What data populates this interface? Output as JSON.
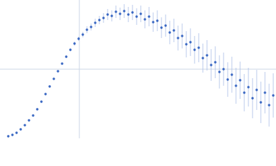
{
  "chart_data": {
    "type": "scatter",
    "color": "#3866c2",
    "error_color": "#a8bce6",
    "xlim": [
      0,
      400
    ],
    "ylim": [
      0,
      200
    ],
    "xgrid": [
      115
    ],
    "ygrid": [
      100
    ],
    "grid": true,
    "x": [
      12,
      18,
      24,
      30,
      36,
      42,
      48,
      54,
      60,
      66,
      72,
      78,
      84,
      90,
      96,
      102,
      108,
      114,
      120,
      126,
      132,
      138,
      144,
      150,
      156,
      162,
      168,
      174,
      180,
      186,
      192,
      198,
      204,
      210,
      216,
      222,
      228,
      234,
      240,
      246,
      252,
      258,
      264,
      270,
      276,
      282,
      288,
      294,
      300,
      306,
      312,
      318,
      324,
      330,
      336,
      342,
      348,
      354,
      360,
      366,
      372,
      378,
      384,
      390,
      396
    ],
    "values": [
      3,
      5,
      8,
      13,
      19,
      26,
      33,
      42,
      53,
      64,
      75,
      86,
      97,
      108,
      118,
      128,
      137,
      144,
      150,
      157,
      161,
      167,
      171,
      174,
      179,
      177,
      183,
      180,
      184,
      179,
      182,
      176,
      180,
      172,
      176,
      168,
      170,
      160,
      163,
      153,
      156,
      145,
      148,
      136,
      139,
      128,
      131,
      116,
      120,
      106,
      110,
      96,
      100,
      85,
      92,
      76,
      84,
      66,
      74,
      58,
      70,
      52,
      66,
      48,
      62
    ],
    "errors": [
      1,
      1,
      1,
      1,
      1,
      1,
      1,
      1,
      1,
      1,
      1,
      1,
      1,
      1,
      2,
      2,
      3,
      3,
      4,
      5,
      5,
      6,
      6,
      7,
      8,
      8,
      9,
      9,
      10,
      11,
      11,
      12,
      12,
      13,
      14,
      14,
      15,
      15,
      16,
      17,
      17,
      18,
      18,
      19,
      20,
      20,
      21,
      21,
      22,
      23,
      23,
      24,
      24,
      25,
      26,
      26,
      27,
      27,
      28,
      29,
      29,
      30,
      30,
      31,
      32
    ]
  }
}
